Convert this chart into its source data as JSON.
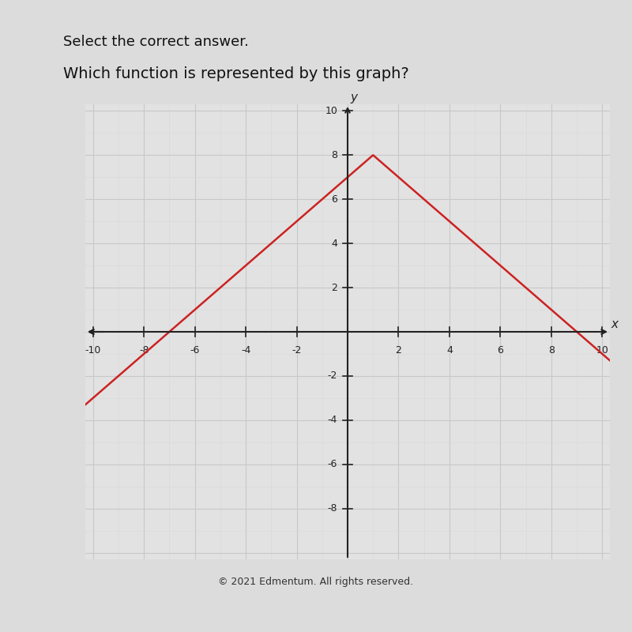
{
  "title": "Which function is represented by this graph?",
  "header": "Select the correct answer.",
  "peak_x": 1,
  "peak_y": 8,
  "x_range": [
    -10,
    10
  ],
  "y_range": [
    -10,
    10
  ],
  "x_ticks": [
    -10,
    -8,
    -6,
    -4,
    -2,
    2,
    4,
    6,
    8,
    10
  ],
  "y_ticks": [
    -8,
    -6,
    -4,
    -2,
    2,
    4,
    6,
    8,
    10
  ],
  "line_color": "#cc2222",
  "line_width": 1.8,
  "grid_major_color": "#c8c8c8",
  "grid_minor_color": "#d8d8d8",
  "background_color": "#dcdcdc",
  "plot_bg_color": "#e2e2e2",
  "white_panel_color": "#f0f0f0",
  "axis_color": "#222222",
  "tick_color": "#222222",
  "xlabel": "x",
  "ylabel": "y",
  "title_fontsize": 14,
  "header_fontsize": 13,
  "tick_fontsize": 9,
  "footer": "© 2021 Edmentum. All rights reserved.",
  "footer_fontsize": 9
}
